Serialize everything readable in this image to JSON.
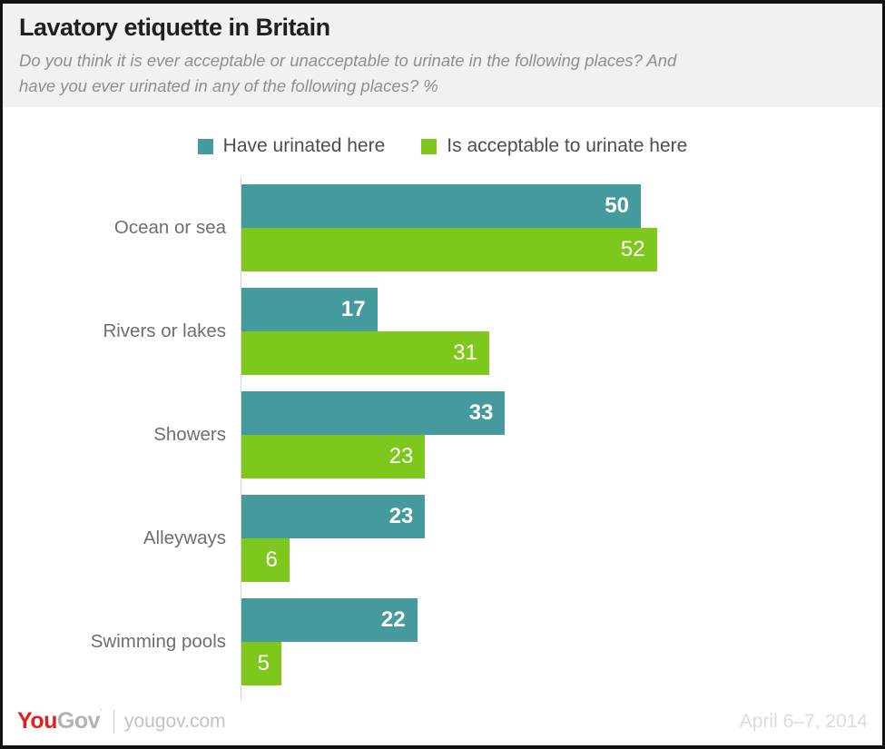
{
  "header": {
    "title": "Lavatory etiquette in Britain",
    "subtitle_line1": "Do you think it is ever acceptable or unacceptable to urinate in the following places? And",
    "subtitle_line2": "have you ever urinated in any of the following places? %"
  },
  "legend": {
    "items": [
      {
        "label": "Have urinated here",
        "color": "#459A9E"
      },
      {
        "label": "Is acceptable to urinate here",
        "color": "#7EC71D"
      }
    ]
  },
  "chart_data": {
    "type": "bar",
    "orientation": "horizontal",
    "title": "Lavatory etiquette in Britain",
    "categories": [
      "Ocean or sea",
      "Rivers or lakes",
      "Showers",
      "Alleyways",
      "Swimming pools"
    ],
    "series": [
      {
        "name": "Have urinated here",
        "color": "#459A9E",
        "values": [
          50,
          17,
          33,
          23,
          22
        ]
      },
      {
        "name": "Is acceptable to urinate here",
        "color": "#7EC71D",
        "values": [
          52,
          31,
          23,
          6,
          5
        ]
      }
    ],
    "value_unit": "%",
    "xlim": [
      0,
      75
    ],
    "grid": false,
    "legend_position": "top",
    "value_labels": "inside-end"
  },
  "footer": {
    "logo_you": "You",
    "logo_gov": "Gov",
    "logo_tm": "’",
    "site": "yougov.com",
    "date": "April 6–7, 2014"
  },
  "colors": {
    "series_have_urinated": "#459A9E",
    "series_acceptable": "#7EC71D",
    "header_background": "#f1f1f2",
    "page_border": "#111111",
    "axis_line": "#d4d4d4",
    "logo_red": "#e0201e",
    "logo_gray": "#b3b3b3"
  }
}
